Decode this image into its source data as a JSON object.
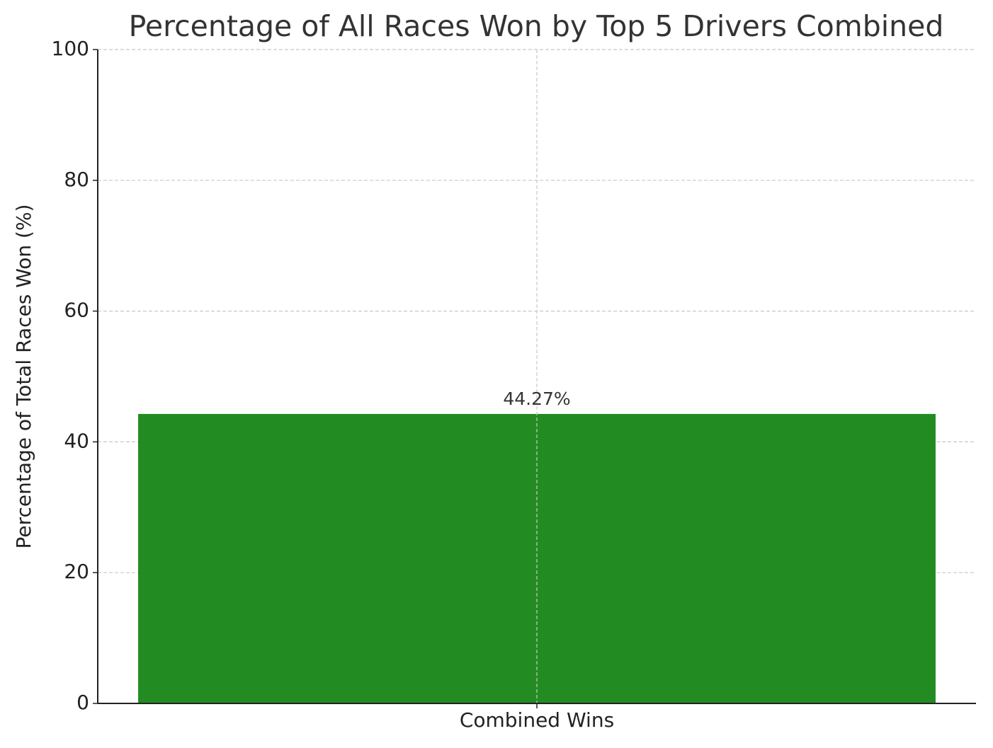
{
  "chart_data": {
    "type": "bar",
    "title": "Percentage of All Races Won by Top 5 Drivers Combined",
    "y_label": "Percentage of Total Races Won (%)",
    "categories": [
      "Combined Wins"
    ],
    "values": [
      44.27
    ],
    "value_labels": [
      "44.27%"
    ],
    "color": "#228b22",
    "ylim": [
      0,
      100
    ],
    "yticks": [
      0,
      20,
      40,
      60,
      80,
      100
    ],
    "grid": true
  }
}
